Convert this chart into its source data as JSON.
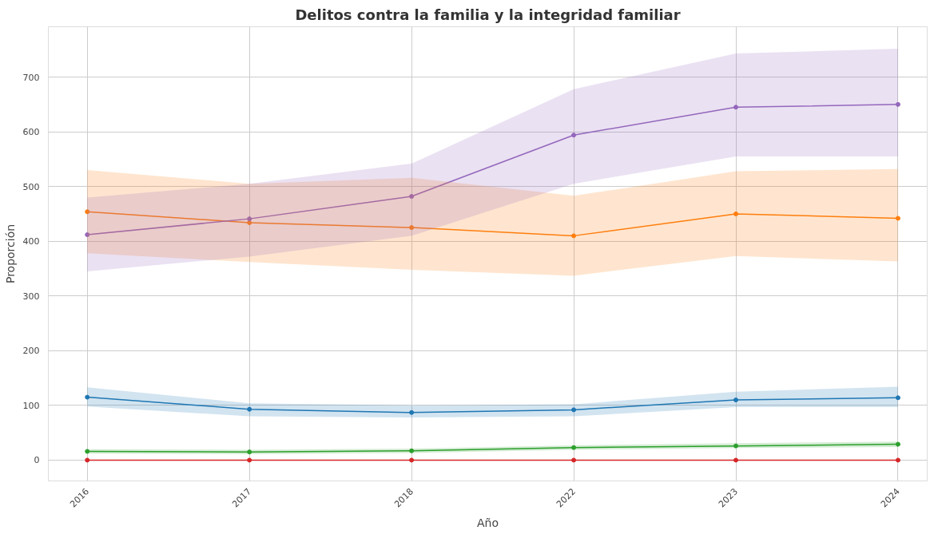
{
  "chart_data": {
    "type": "line",
    "title": "Delitos contra la familia y la integridad familiar",
    "xlabel": "Año",
    "ylabel": "Proporción",
    "categories": [
      "2016",
      "2017",
      "2018",
      "2022",
      "2023",
      "2024"
    ],
    "series": [
      {
        "color": "#1f77b4",
        "values": [
          115,
          93,
          87,
          92,
          110,
          114
        ],
        "lower": [
          98,
          80,
          78,
          80,
          97,
          97
        ],
        "upper": [
          133,
          104,
          100,
          102,
          125,
          134
        ]
      },
      {
        "color": "#ff7f0e",
        "values": [
          454,
          434,
          425,
          410,
          450,
          442
        ],
        "lower": [
          378,
          362,
          348,
          337,
          373,
          363
        ],
        "upper": [
          530,
          505,
          516,
          483,
          528,
          532
        ]
      },
      {
        "color": "#2ca02c",
        "values": [
          16,
          15,
          17,
          23,
          26,
          29
        ],
        "lower": [
          12,
          11,
          13,
          19,
          22,
          24
        ],
        "upper": [
          20,
          19,
          21,
          27,
          31,
          34
        ]
      },
      {
        "color": "#d62728",
        "values": [
          0,
          0,
          0,
          0,
          0,
          0
        ]
      },
      {
        "color": "#9467bd",
        "values": [
          412,
          441,
          482,
          594,
          645,
          650
        ],
        "lower": [
          345,
          372,
          410,
          505,
          555,
          555
        ],
        "upper": [
          480,
          505,
          542,
          678,
          743,
          752
        ]
      }
    ],
    "ylim": [
      -38,
      792
    ],
    "yticks": [
      0,
      100,
      200,
      300,
      400,
      500,
      600,
      700
    ],
    "grid": true,
    "marker": "circle",
    "line_style": "solid"
  }
}
